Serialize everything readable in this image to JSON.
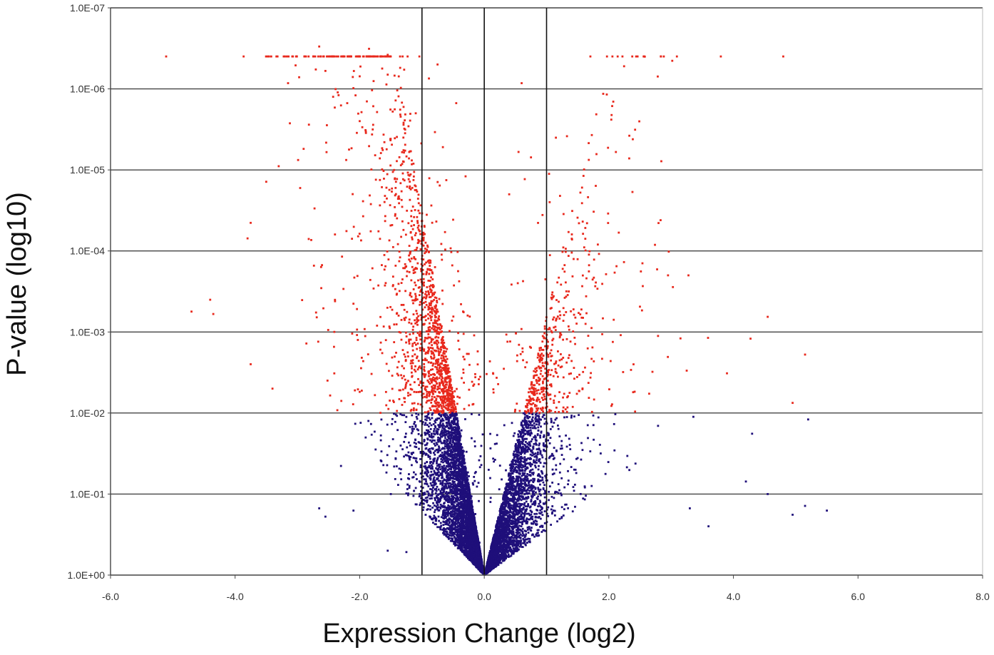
{
  "chart_data": {
    "type": "scatter",
    "title": "",
    "xlabel": "Expression Change (log2)",
    "ylabel": "P-value (log10)",
    "xlim": [
      -6.0,
      8.0
    ],
    "ylim_pvalue": [
      1.0,
      1e-07
    ],
    "y_scale": "log10, inverted (smaller p-value toward top)",
    "x_ticks": [
      "-6.0",
      "-4.0",
      "-2.0",
      "0.0",
      "2.0",
      "4.0",
      "6.0",
      "8.0"
    ],
    "y_ticks": [
      "1.0E+00",
      "1.0E-01",
      "1.0E-02",
      "1.0E-03",
      "1.0E-04",
      "1.0E-05",
      "1.0E-06",
      "1.0E-07"
    ],
    "grid": "horizontal gridlines at each decade",
    "vertical_reference_lines": [
      -1.0,
      0.0,
      1.0
    ],
    "significance_threshold_p": 0.01,
    "colors": {
      "significant": "#e8281c",
      "not_significant": "#1f0f7a",
      "gridline": "#444444",
      "reference_line": "#111111"
    },
    "series": [
      {
        "color": "significant",
        "points": [
          [
            -4.7,
            0.00056
          ],
          [
            -4.4,
            0.0004
          ],
          [
            -4.35,
            0.0006
          ],
          [
            -3.8,
            7e-05
          ],
          [
            -3.75,
            4.5e-05
          ],
          [
            -3.75,
            0.0025
          ],
          [
            -3.4,
            0.005
          ],
          [
            -3.5,
            1.4e-05
          ],
          [
            -3.15,
            8.5e-07
          ],
          [
            -2.65,
            3e-07
          ],
          [
            -2.55,
            6e-07
          ],
          [
            -2.3,
            1.6e-06
          ],
          [
            -2.0,
            7e-07
          ],
          [
            -1.85,
            3.2e-07
          ],
          [
            -1.55,
            3.8e-07
          ],
          [
            -1.35,
            5.5e-07
          ],
          [
            -2.4,
            1.7e-06
          ],
          [
            -2.2,
            1.5e-06
          ],
          [
            -2.9,
            5.5e-06
          ],
          [
            -3.3,
            9e-06
          ],
          [
            -2.0,
            2.5e-06
          ],
          [
            -1.9,
            3.5e-06
          ],
          [
            -1.1,
            2e-06
          ],
          [
            -0.75,
            5e-07
          ],
          [
            -0.45,
            1.5e-06
          ],
          [
            0.6,
            8.5e-07
          ],
          [
            0.55,
            6e-06
          ],
          [
            0.75,
            7e-06
          ],
          [
            1.15,
            4e-06
          ],
          [
            1.05,
            2.5e-05
          ],
          [
            0.65,
            1.3e-05
          ],
          [
            -0.3,
            1.2e-05
          ],
          [
            0.4,
            2e-05
          ],
          [
            2.95,
            0.0002
          ],
          [
            4.55,
            0.00065
          ],
          [
            5.15,
            0.0019
          ],
          [
            4.95,
            0.0075
          ],
          [
            3.15,
            0.0012
          ],
          [
            3.25,
            0.003
          ],
          [
            2.7,
            0.0031
          ]
        ]
      },
      {
        "color": "not_significant",
        "points": [
          [
            5.5,
            0.16
          ],
          [
            5.15,
            0.14
          ],
          [
            4.95,
            0.18
          ],
          [
            5.2,
            0.012
          ],
          [
            4.55,
            0.1
          ],
          [
            4.3,
            0.018
          ],
          [
            4.2,
            0.07
          ],
          [
            -2.65,
            0.15
          ],
          [
            -2.55,
            0.19
          ],
          [
            -2.1,
            0.16
          ],
          [
            -2.3,
            0.045
          ],
          [
            -1.55,
            0.5
          ],
          [
            -1.25,
            0.52
          ],
          [
            -1.5,
            0.1
          ],
          [
            3.6,
            0.25
          ],
          [
            3.3,
            0.15
          ]
        ]
      }
    ]
  }
}
